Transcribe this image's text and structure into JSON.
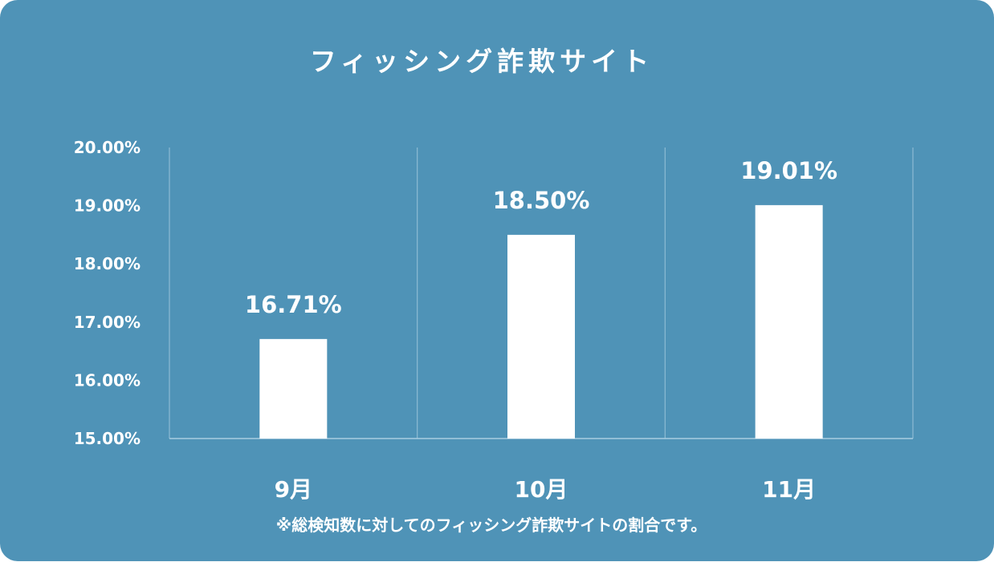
{
  "colors": {
    "background": "#4f93b7",
    "bar": "#ffffff",
    "text": "#ffffff",
    "grid": "#8dbbd3"
  },
  "footnote": "※総検知数に対してのフィッシング詐欺サイトの割合です。",
  "chart_data": {
    "type": "bar",
    "title": "フィッシング詐欺サイト",
    "xlabel": "",
    "ylabel": "",
    "categories": [
      "9月",
      "10月",
      "11月"
    ],
    "values": [
      16.71,
      18.5,
      19.01
    ],
    "value_labels": [
      "16.71%",
      "18.50%",
      "19.01%"
    ],
    "ylim": [
      15,
      20
    ],
    "yticks": [
      15,
      16,
      17,
      18,
      19,
      20
    ],
    "ytick_labels": [
      "15.00%",
      "16.00%",
      "17.00%",
      "18.00%",
      "19.00%",
      "20.00%"
    ],
    "grid": "vertical separators between categories",
    "legend": "none"
  }
}
